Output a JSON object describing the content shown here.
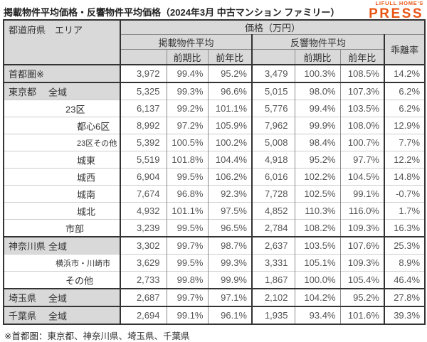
{
  "page": {
    "title": "掲載物件平均価格・反響物件平均価格（2024年3月 中古マンション ファミリー）",
    "brand": {
      "top": "LIFULL HOME'S",
      "bottom": "PRESS",
      "color": "#ea5514"
    },
    "footnote": "※首都圏：東京都、神奈川県、埼玉県、千葉県"
  },
  "chart_data": {
    "type": "table",
    "title": "掲載物件平均価格・反響物件平均価格（2024年3月 中古マンション ファミリー）",
    "corner_header": "都道府県　エリア",
    "price_header": "価格（万円）",
    "groups": [
      {
        "label": "掲載物件平均"
      },
      {
        "label": "反響物件平均"
      }
    ],
    "sub_headers": [
      "前期比",
      "前年比"
    ],
    "deviation_header": "乖離率",
    "columns": [
      "都道府県 エリア",
      "掲載物件平均",
      "前期比",
      "前年比",
      "反響物件平均",
      "前期比",
      "前年比",
      "乖離率"
    ],
    "header_bg": "#d9d9d9",
    "rows": [
      {
        "pref": "首都圏※",
        "area": "",
        "indent": "",
        "highlight": true,
        "thick_top": true,
        "small": false,
        "values": [
          "3,972",
          "99.4%",
          "95.2%",
          "3,479",
          "100.3%",
          "108.5%",
          "14.2%"
        ]
      },
      {
        "pref": "東京都",
        "area": "全域",
        "indent": "1",
        "highlight": true,
        "thick_top": true,
        "small": false,
        "values": [
          "5,325",
          "99.3%",
          "96.6%",
          "5,015",
          "98.0%",
          "107.3%",
          "6.2%"
        ]
      },
      {
        "pref": "",
        "area": "23区",
        "indent": "2",
        "highlight": false,
        "thick_top": false,
        "small": false,
        "values": [
          "6,137",
          "99.2%",
          "101.1%",
          "5,776",
          "99.4%",
          "103.5%",
          "6.2%"
        ]
      },
      {
        "pref": "",
        "area": "都心6区",
        "indent": "3",
        "highlight": false,
        "thick_top": false,
        "small": false,
        "values": [
          "8,992",
          "97.2%",
          "105.9%",
          "7,962",
          "99.9%",
          "108.0%",
          "12.9%"
        ]
      },
      {
        "pref": "",
        "area": "23区その他",
        "indent": "3",
        "highlight": false,
        "thick_top": false,
        "small": true,
        "values": [
          "5,392",
          "100.5%",
          "100.2%",
          "5,008",
          "98.4%",
          "100.7%",
          "7.7%"
        ]
      },
      {
        "pref": "",
        "area": "城東",
        "indent": "3",
        "highlight": false,
        "thick_top": false,
        "small": false,
        "values": [
          "5,519",
          "101.8%",
          "104.4%",
          "4,918",
          "95.2%",
          "97.7%",
          "12.2%"
        ]
      },
      {
        "pref": "",
        "area": "城西",
        "indent": "3",
        "highlight": false,
        "thick_top": false,
        "small": false,
        "values": [
          "6,904",
          "99.5%",
          "106.2%",
          "6,016",
          "102.2%",
          "104.5%",
          "14.8%"
        ]
      },
      {
        "pref": "",
        "area": "城南",
        "indent": "3",
        "highlight": false,
        "thick_top": false,
        "small": false,
        "values": [
          "7,674",
          "96.8%",
          "92.3%",
          "7,728",
          "102.5%",
          "99.1%",
          "-0.7%"
        ]
      },
      {
        "pref": "",
        "area": "城北",
        "indent": "3",
        "highlight": false,
        "thick_top": false,
        "small": false,
        "values": [
          "4,932",
          "101.1%",
          "97.5%",
          "4,852",
          "110.3%",
          "116.0%",
          "1.7%"
        ]
      },
      {
        "pref": "",
        "area": "市部",
        "indent": "2",
        "highlight": false,
        "thick_top": false,
        "small": false,
        "values": [
          "3,239",
          "99.5%",
          "96.5%",
          "2,784",
          "108.2%",
          "109.3%",
          "16.3%"
        ]
      },
      {
        "pref": "神奈川県",
        "area": "全域",
        "indent": "1",
        "highlight": true,
        "thick_top": true,
        "small": false,
        "values": [
          "3,302",
          "99.7%",
          "98.7%",
          "2,637",
          "103.5%",
          "107.6%",
          "25.3%"
        ]
      },
      {
        "pref": "",
        "area": "横浜市・川崎市",
        "indent": "3w",
        "highlight": false,
        "thick_top": false,
        "small": true,
        "values": [
          "3,629",
          "99.5%",
          "99.3%",
          "3,331",
          "105.1%",
          "109.3%",
          "8.9%"
        ]
      },
      {
        "pref": "",
        "area": "その他",
        "indent": "2",
        "highlight": false,
        "thick_top": false,
        "small": false,
        "values": [
          "2,733",
          "99.8%",
          "99.9%",
          "1,867",
          "100.0%",
          "105.4%",
          "46.4%"
        ]
      },
      {
        "pref": "埼玉県",
        "area": "全域",
        "indent": "1",
        "highlight": true,
        "thick_top": true,
        "small": false,
        "values": [
          "2,687",
          "99.7%",
          "97.1%",
          "2,102",
          "104.2%",
          "95.2%",
          "27.8%"
        ]
      },
      {
        "pref": "千葉県",
        "area": "全域",
        "indent": "1",
        "highlight": true,
        "thick_top": true,
        "small": false,
        "values": [
          "2,694",
          "99.1%",
          "96.1%",
          "1,935",
          "93.4%",
          "101.6%",
          "39.3%"
        ]
      }
    ],
    "footnote": "※首都圏：東京都、神奈川県、埼玉県、千葉県"
  }
}
